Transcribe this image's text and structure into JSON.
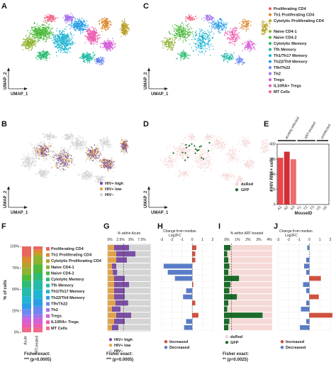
{
  "panel_letters": [
    "A",
    "B",
    "C",
    "D",
    "E",
    "F",
    "G",
    "H",
    "I",
    "J"
  ],
  "umap": {
    "xlabel": "UMAP_1",
    "ylabel": "UMAP_2"
  },
  "cluster_legend": [
    {
      "name": "Proliferating CD4",
      "color": "#e8665e"
    },
    {
      "name": "Th1 Proliferating CD4",
      "color": "#dc8a2f"
    },
    {
      "name": "Cytolytic Proliferating CD4",
      "color": "#b9a02a"
    },
    {
      "name": "Naive CD4-1",
      "color": "#8fb230"
    },
    {
      "name": "Naive CD4-2",
      "color": "#4dba3c"
    },
    {
      "name": "Cytolytic Memory",
      "color": "#2fbb74"
    },
    {
      "name": "Tfh Memory",
      "color": "#25bba8"
    },
    {
      "name": "Th1/Th17 Memory",
      "color": "#20b5d2"
    },
    {
      "name": "Th22/Th9 Memory",
      "color": "#2a9fe6"
    },
    {
      "name": "Tfh/Th22",
      "color": "#6c88f0"
    },
    {
      "name": "Th2",
      "color": "#a474ec"
    },
    {
      "name": "Tregs",
      "color": "#d45fd6"
    },
    {
      "name": "IL10RA+ Tregs",
      "color": "#ec5cae"
    },
    {
      "name": "MT Cells",
      "color": "#f26a8a"
    }
  ],
  "hiv_legend": [
    {
      "name": "HIV+ high",
      "color": "#7b4fa3"
    },
    {
      "name": "HIV+ low",
      "color": "#e0a24c"
    },
    {
      "name": "HIV−",
      "color": "#d4d4d4"
    }
  ],
  "dsred_legend": [
    {
      "name": "dsRed",
      "color": "#f5d9d6"
    },
    {
      "name": "GFP",
      "color": "#1b6b2a"
    }
  ],
  "panel_e": {
    "ylabel": "# HIV RNA+ cells",
    "xlabel": "MouseID",
    "group_labels": [
      "acutely-infected",
      "ART-treated",
      "uninfected"
    ],
    "chart_data": {
      "type": "bar",
      "categories": [
        "A1",
        "A2",
        "A3",
        "T1",
        "T2",
        "T3",
        "U1",
        "U2"
      ],
      "values": [
        310,
        350,
        300,
        0,
        0,
        0,
        0,
        0
      ],
      "ylim": [
        0,
        400
      ],
      "yticks": [
        0,
        100,
        200,
        300,
        400
      ]
    }
  },
  "panel_f": {
    "ylabel": "% of cells",
    "yticks": [
      "0%",
      "25%",
      "50%",
      "75%",
      "100%"
    ],
    "columns": [
      "Acute",
      "ART-treated"
    ],
    "stat_label": "Fisher exact:",
    "stat_value": "*** (p=0.0005)"
  },
  "panel_g": {
    "axis_title": "% within Acute",
    "ticks": [
      "0%",
      "2.5%",
      "5%",
      "7.5%"
    ],
    "stat_label": "Fisher exact:",
    "stat_value": "*** (p=0.0005)"
  },
  "panel_h": {
    "axis_title": "Change from median",
    "axis_subtitle": "Log2FC",
    "ticks": [
      "-3",
      "-2",
      "-1",
      "0",
      "1",
      "2"
    ],
    "legend": [
      {
        "name": "Increased",
        "color": "#d0503e"
      },
      {
        "name": "Decreased",
        "color": "#5a7cc6"
      }
    ],
    "chart_data": {
      "type": "bar",
      "categories": [
        "Proliferating CD4",
        "Th1 Proliferating CD4",
        "Cytolytic Proliferating CD4",
        "Naive CD4-1",
        "Naive CD4-2",
        "Cytolytic Memory",
        "Tfh Memory",
        "Th1/Th17 Memory",
        "Th22/Th9 Memory",
        "Tfh/Th22",
        "Th2",
        "Tregs",
        "IL10RA+ Tregs",
        "MT Cells"
      ],
      "values": [
        0.4,
        0.3,
        0.3,
        -2.8,
        -2.4,
        -1.7,
        0.1,
        -0.6,
        -0.9,
        0.3,
        0,
        0.6,
        -0.6,
        -0.8
      ],
      "xlim": [
        -3,
        2
      ]
    }
  },
  "panel_i": {
    "axis_title": "% within ART-treated",
    "ticks": [
      "0%",
      "1%",
      "2%",
      "3%",
      "4%"
    ],
    "stat_label": "Fisher exact:",
    "stat_value": "** (p=0.0025)"
  },
  "panel_j": {
    "axis_title": "Change from median",
    "axis_subtitle": "Log2FC",
    "ticks": [
      "-3",
      "-2",
      "-1",
      "0",
      "1",
      "2"
    ],
    "legend": [
      {
        "name": "Increased",
        "color": "#d0503e"
      },
      {
        "name": "Decreased",
        "color": "#5a7cc6"
      }
    ],
    "chart_data": {
      "type": "bar",
      "categories": [
        "Proliferating CD4",
        "Th1 Proliferating CD4",
        "Cytolytic Proliferating CD4",
        "Naive CD4-1",
        "Naive CD4-2",
        "Cytolytic Memory",
        "Tfh Memory",
        "Th1/Th17 Memory",
        "Th22/Th9 Memory",
        "Tfh/Th22",
        "Th2",
        "Tregs",
        "IL10RA+ Tregs",
        "MT Cells"
      ],
      "values": [
        -0.2,
        0,
        -0.3,
        -0.5,
        -0.3,
        1.1,
        -0.6,
        -0.3,
        0.9,
        -0.3,
        -0.8,
        2.2,
        -0.3,
        -0.9
      ],
      "xlim": [
        -3,
        2
      ]
    }
  }
}
